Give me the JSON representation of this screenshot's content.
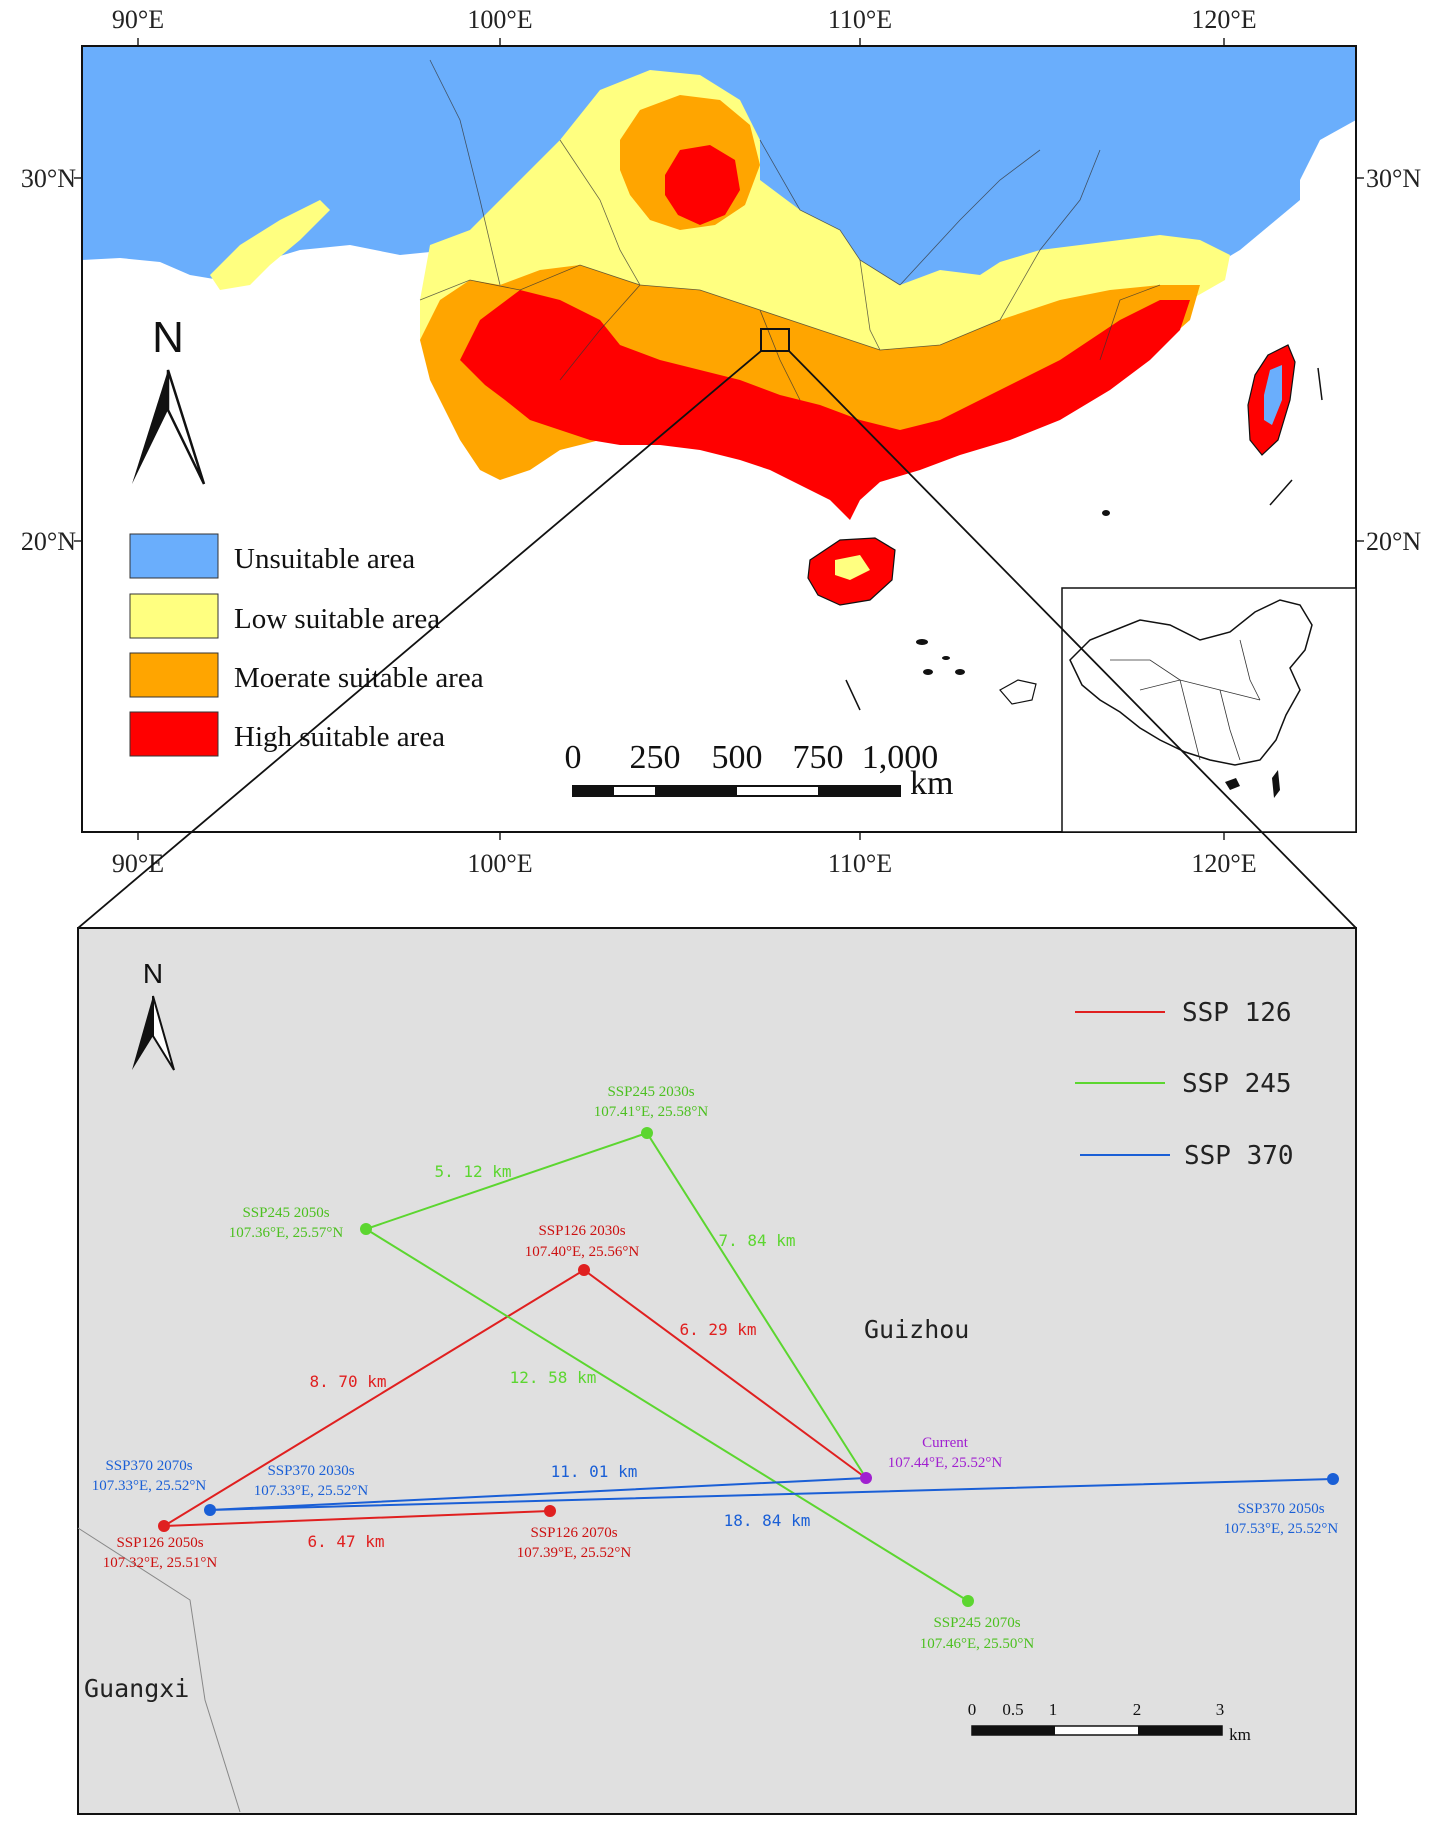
{
  "top_map": {
    "longitude_labels": [
      "90°E",
      "100°E",
      "110°E",
      "120°E"
    ],
    "latitude_labels": [
      "30°N",
      "20°N"
    ],
    "north_arrow": "N",
    "legend": [
      {
        "label": "Unsuitable area",
        "color": "#6aaefc"
      },
      {
        "label": "Low suitable area",
        "color": "#ffff80"
      },
      {
        "label": "Moerate suitable area",
        "color": "#ffa500"
      },
      {
        "label": "High suitable area",
        "color": "#ff0000"
      }
    ],
    "scale_bar": {
      "ticks": [
        "0",
        "250",
        "500",
        "750",
        "1,000"
      ],
      "unit": "km"
    }
  },
  "detail_map": {
    "north_arrow": "N",
    "legend": [
      {
        "label": "SSP 126",
        "color": "#e02020"
      },
      {
        "label": "SSP 245",
        "color": "#5cd630"
      },
      {
        "label": "SSP 370",
        "color": "#1a5fd6"
      }
    ],
    "regions": {
      "guizhou": "Guizhou",
      "guangxi": "Guangxi"
    },
    "points": {
      "current": {
        "name": "Current",
        "coord": "107.44°E, 25.52°N",
        "lon": 107.44,
        "lat": 25.52
      },
      "ssp126_2030": {
        "name": "SSP126 2030s",
        "coord": "107.40°E, 25.56°N",
        "lon": 107.4,
        "lat": 25.56
      },
      "ssp126_2050": {
        "name": "SSP126 2050s",
        "coord": "107.32°E, 25.51°N",
        "lon": 107.32,
        "lat": 25.51
      },
      "ssp126_2070": {
        "name": "SSP126 2070s",
        "coord": "107.39°E, 25.52°N",
        "lon": 107.39,
        "lat": 25.52
      },
      "ssp245_2030": {
        "name": "SSP245 2030s",
        "coord": "107.41°E, 25.58°N",
        "lon": 107.41,
        "lat": 25.58
      },
      "ssp245_2050": {
        "name": "SSP245 2050s",
        "coord": "107.36°E, 25.57°N",
        "lon": 107.36,
        "lat": 25.57
      },
      "ssp245_2070": {
        "name": "SSP245 2070s",
        "coord": "107.46°E, 25.50°N",
        "lon": 107.46,
        "lat": 25.5
      },
      "ssp370_2030": {
        "name": "SSP370 2030s",
        "coord": "107.33°E, 25.52°N",
        "lon": 107.33,
        "lat": 25.52
      },
      "ssp370_2050": {
        "name": "SSP370 2050s",
        "coord": "107.53°E, 25.52°N",
        "lon": 107.53,
        "lat": 25.52
      },
      "ssp370_2070": {
        "name": "SSP370 2070s",
        "coord": "107.33°E, 25.52°N",
        "lon": 107.33,
        "lat": 25.52
      }
    },
    "distances": {
      "ssp126_current_2030": "6. 29  km",
      "ssp126_2030_2050": "8. 70  km",
      "ssp126_2050_2070": "6. 47  km",
      "ssp245_current_2030": "7. 84  km",
      "ssp245_2030_2050": "5. 12  km",
      "ssp245_2050_2070": "12. 58  km",
      "ssp370_current_2030": "11. 01  km",
      "ssp370_2030_2050": "18. 84  km"
    },
    "scale_bar": {
      "ticks": [
        "0",
        "0.5",
        "1",
        "2",
        "3"
      ],
      "unit": "km"
    }
  }
}
